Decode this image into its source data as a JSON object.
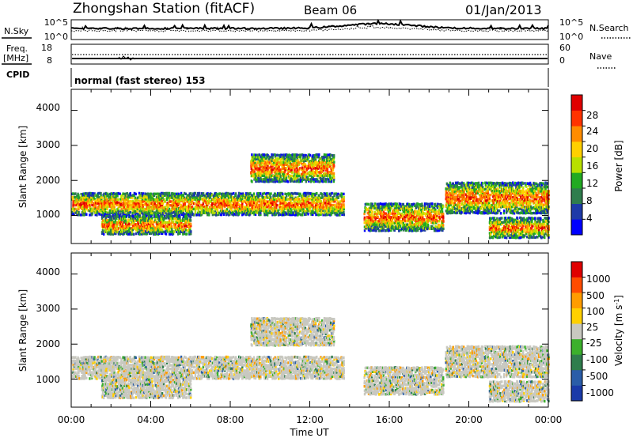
{
  "header": {
    "station": "Zhongshan Station (fitACF)",
    "beam": "Beam 06",
    "date": "01/Jan/2013"
  },
  "top_panels": {
    "nsky_label": "N.Sky",
    "nsky_ticks": [
      "10^5",
      "10^0"
    ],
    "nsearch_label": "N.Search",
    "nsearch_ticks": [
      "10^5",
      "10^0"
    ],
    "freq_label": "Freq.",
    "freq_unit": "[MHz]",
    "freq_ticks": [
      "18",
      "8"
    ],
    "nave_label": "Nave",
    "nave_ticks": [
      "60",
      "0"
    ],
    "cpid_label": "CPID",
    "cpid_text": "normal (fast stereo) 153"
  },
  "chart_data": [
    {
      "type": "heatmap",
      "panel": "power",
      "ylabel": "Slant Range [km]",
      "yticks": [
        1000,
        2000,
        3000,
        4000
      ],
      "ylim": [
        200,
        4600
      ],
      "xticks": [
        "00:00",
        "04:00",
        "08:00",
        "12:00",
        "16:00",
        "20:00",
        "00:00"
      ],
      "xlim_hours": [
        0,
        24
      ],
      "colorbar": {
        "label": "Power [dB]",
        "ticks": [
          "28",
          "24",
          "20",
          "16",
          "12",
          "8",
          "4"
        ],
        "colors": [
          "#0000ff",
          "#1e3aa8",
          "#2f7d4d",
          "#22aa22",
          "#b8e000",
          "#ffd000",
          "#ff8c00",
          "#ff3300",
          "#e00000"
        ]
      },
      "echo_regions": [
        {
          "t0": 0.0,
          "t1": 13.7,
          "r0": 1050,
          "r1": 1700
        },
        {
          "t0": 1.5,
          "t1": 6.0,
          "r0": 500,
          "r1": 1050
        },
        {
          "t0": 9.0,
          "t1": 13.2,
          "r0": 2000,
          "r1": 2800
        },
        {
          "t0": 14.7,
          "t1": 18.7,
          "r0": 600,
          "r1": 1400
        },
        {
          "t0": 18.8,
          "t1": 24.0,
          "r0": 1100,
          "r1": 2000
        },
        {
          "t0": 21.0,
          "t1": 24.0,
          "r0": 400,
          "r1": 1000
        }
      ]
    },
    {
      "type": "heatmap",
      "panel": "velocity",
      "ylabel": "Slant Range [km]",
      "yticks": [
        1000,
        2000,
        3000,
        4000
      ],
      "ylim": [
        200,
        4600
      ],
      "xticks": [
        "00:00",
        "04:00",
        "08:00",
        "12:00",
        "16:00",
        "20:00",
        "00:00"
      ],
      "xlabel": "Time UT",
      "xlim_hours": [
        0,
        24
      ],
      "colorbar": {
        "label": "Velocity [m s",
        "label_sup": "-1",
        "label_end": "]",
        "ticks": [
          "1000",
          "500",
          "100",
          "25",
          "-25",
          "-100",
          "-500",
          "-1000"
        ],
        "colors": [
          "#1a3aa8",
          "#2a5da8",
          "#2f7d4d",
          "#3cb02c",
          "#c8c8c0",
          "#ffd000",
          "#ff9c00",
          "#ff4c00",
          "#e00000"
        ]
      }
    }
  ]
}
